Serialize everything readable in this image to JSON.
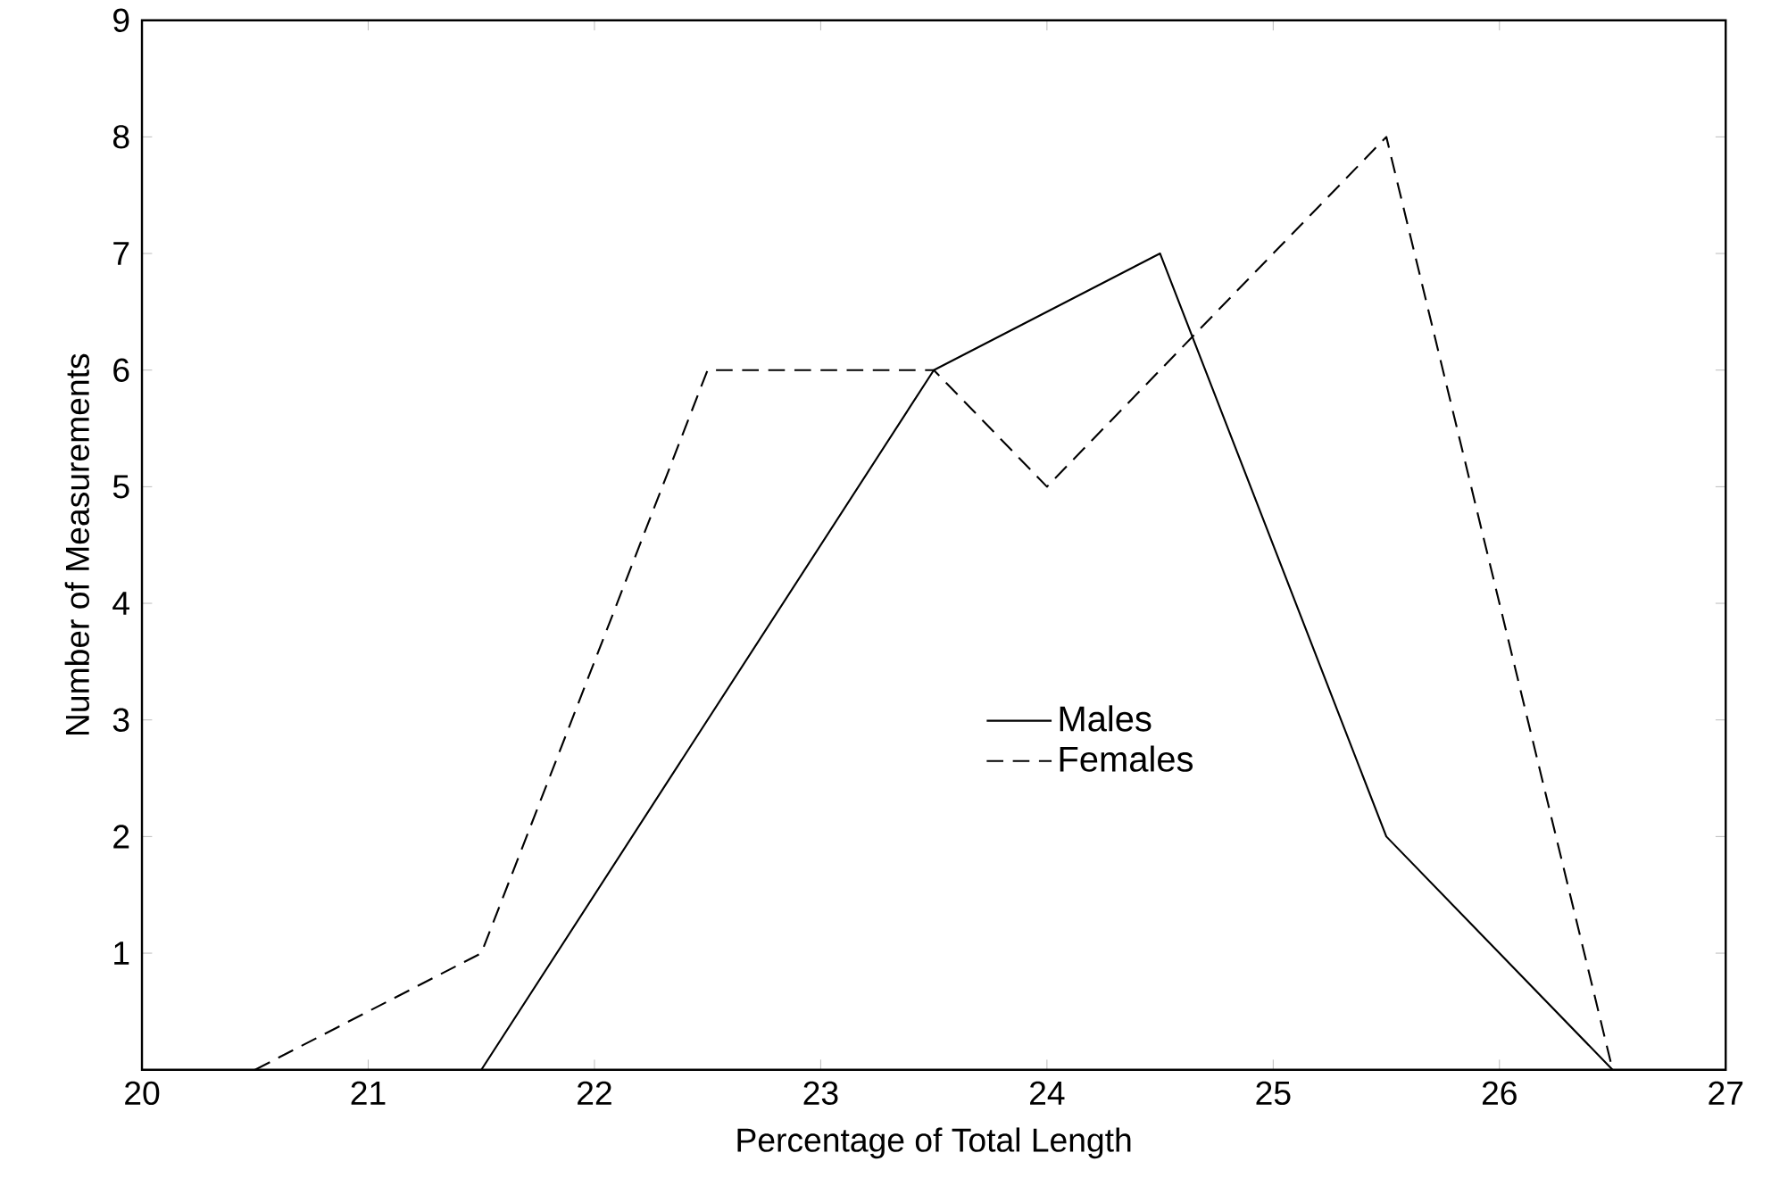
{
  "chart_data": {
    "type": "line",
    "xlabel": "Percentage of Total Length",
    "ylabel": "Number of Measurements",
    "xlim": [
      20,
      27
    ],
    "ylim": [
      0,
      9
    ],
    "xticks": [
      20,
      21,
      22,
      23,
      24,
      25,
      26,
      27
    ],
    "yticks": [
      1,
      2,
      3,
      4,
      5,
      6,
      7,
      8,
      9
    ],
    "grid": false,
    "legend": "bottom",
    "marker": "none",
    "series": [
      {
        "name": "Males",
        "color": "#000000",
        "line_style": "solid",
        "x": [
          21.5,
          22.5,
          23.5,
          24.5,
          25.5,
          26.5
        ],
        "values": [
          0,
          3,
          6,
          7,
          2,
          0
        ]
      },
      {
        "name": "Females",
        "color": "#000000",
        "line_style": "dashed",
        "x": [
          20.5,
          21.5,
          22.5,
          23,
          23.5,
          24,
          25.5,
          26.5
        ],
        "values": [
          0,
          1,
          6,
          6,
          6,
          5,
          8,
          0
        ]
      }
    ]
  }
}
